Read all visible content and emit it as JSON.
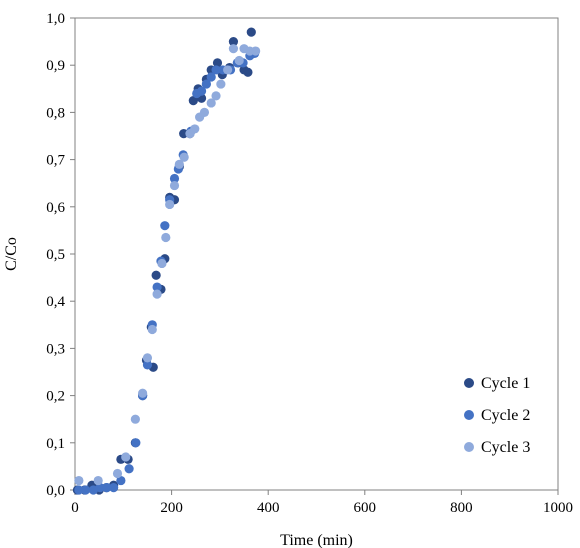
{
  "chart_data": {
    "type": "scatter",
    "xlabel": "Time (min)",
    "ylabel": "C/Co",
    "xlim": [
      0,
      1000
    ],
    "ylim": [
      0,
      1.0
    ],
    "xticks": [
      0,
      200,
      400,
      600,
      800,
      1000
    ],
    "xtick_labels": [
      "0",
      "200",
      "400",
      "600",
      "800",
      "1000"
    ],
    "yticks": [
      0,
      0.1,
      0.2,
      0.3,
      0.4,
      0.5,
      0.6,
      0.7,
      0.8,
      0.9,
      1.0
    ],
    "ytick_labels": [
      "0,0",
      "0,1",
      "0,2",
      "0,3",
      "0,4",
      "0,5",
      "0,6",
      "0,7",
      "0,8",
      "0,9",
      "1,0"
    ],
    "grid": false,
    "legend_position": "bottom-right",
    "series": [
      {
        "name": "Cycle 1",
        "color": "#2b4a87",
        "points": [
          [
            5,
            0.0
          ],
          [
            20,
            0.0
          ],
          [
            35,
            0.01
          ],
          [
            50,
            0.0
          ],
          [
            65,
            0.005
          ],
          [
            80,
            0.01
          ],
          [
            95,
            0.065
          ],
          [
            110,
            0.065
          ],
          [
            125,
            0.1
          ],
          [
            140,
            0.2
          ],
          [
            148,
            0.275
          ],
          [
            158,
            0.345
          ],
          [
            162,
            0.26
          ],
          [
            168,
            0.455
          ],
          [
            178,
            0.425
          ],
          [
            186,
            0.49
          ],
          [
            196,
            0.62
          ],
          [
            206,
            0.615
          ],
          [
            216,
            0.685
          ],
          [
            225,
            0.755
          ],
          [
            238,
            0.755
          ],
          [
            245,
            0.825
          ],
          [
            255,
            0.85
          ],
          [
            262,
            0.83
          ],
          [
            272,
            0.87
          ],
          [
            282,
            0.89
          ],
          [
            295,
            0.905
          ],
          [
            305,
            0.88
          ],
          [
            320,
            0.895
          ],
          [
            328,
            0.95
          ],
          [
            338,
            0.905
          ],
          [
            350,
            0.89
          ],
          [
            358,
            0.885
          ],
          [
            365,
            0.97
          ]
        ]
      },
      {
        "name": "Cycle 2",
        "color": "#4472c4",
        "points": [
          [
            8,
            0.0
          ],
          [
            22,
            0.0
          ],
          [
            38,
            0.0
          ],
          [
            52,
            0.005
          ],
          [
            66,
            0.005
          ],
          [
            80,
            0.005
          ],
          [
            95,
            0.02
          ],
          [
            112,
            0.045
          ],
          [
            126,
            0.1
          ],
          [
            140,
            0.2
          ],
          [
            150,
            0.265
          ],
          [
            160,
            0.35
          ],
          [
            170,
            0.43
          ],
          [
            178,
            0.485
          ],
          [
            186,
            0.56
          ],
          [
            196,
            0.615
          ],
          [
            206,
            0.66
          ],
          [
            214,
            0.68
          ],
          [
            224,
            0.71
          ],
          [
            240,
            0.76
          ],
          [
            252,
            0.84
          ],
          [
            262,
            0.845
          ],
          [
            272,
            0.86
          ],
          [
            282,
            0.875
          ],
          [
            292,
            0.89
          ],
          [
            306,
            0.89
          ],
          [
            322,
            0.89
          ],
          [
            336,
            0.905
          ],
          [
            348,
            0.905
          ],
          [
            362,
            0.92
          ],
          [
            372,
            0.925
          ]
        ]
      },
      {
        "name": "Cycle 3",
        "color": "#8faadc",
        "points": [
          [
            8,
            0.02
          ],
          [
            48,
            0.02
          ],
          [
            88,
            0.035
          ],
          [
            105,
            0.07
          ],
          [
            125,
            0.15
          ],
          [
            140,
            0.205
          ],
          [
            150,
            0.28
          ],
          [
            160,
            0.34
          ],
          [
            170,
            0.415
          ],
          [
            180,
            0.48
          ],
          [
            188,
            0.535
          ],
          [
            196,
            0.605
          ],
          [
            206,
            0.645
          ],
          [
            216,
            0.69
          ],
          [
            226,
            0.705
          ],
          [
            238,
            0.755
          ],
          [
            248,
            0.765
          ],
          [
            258,
            0.79
          ],
          [
            268,
            0.8
          ],
          [
            282,
            0.82
          ],
          [
            292,
            0.835
          ],
          [
            302,
            0.86
          ],
          [
            316,
            0.89
          ],
          [
            328,
            0.935
          ],
          [
            340,
            0.91
          ],
          [
            350,
            0.935
          ],
          [
            362,
            0.93
          ],
          [
            374,
            0.93
          ]
        ]
      }
    ]
  }
}
